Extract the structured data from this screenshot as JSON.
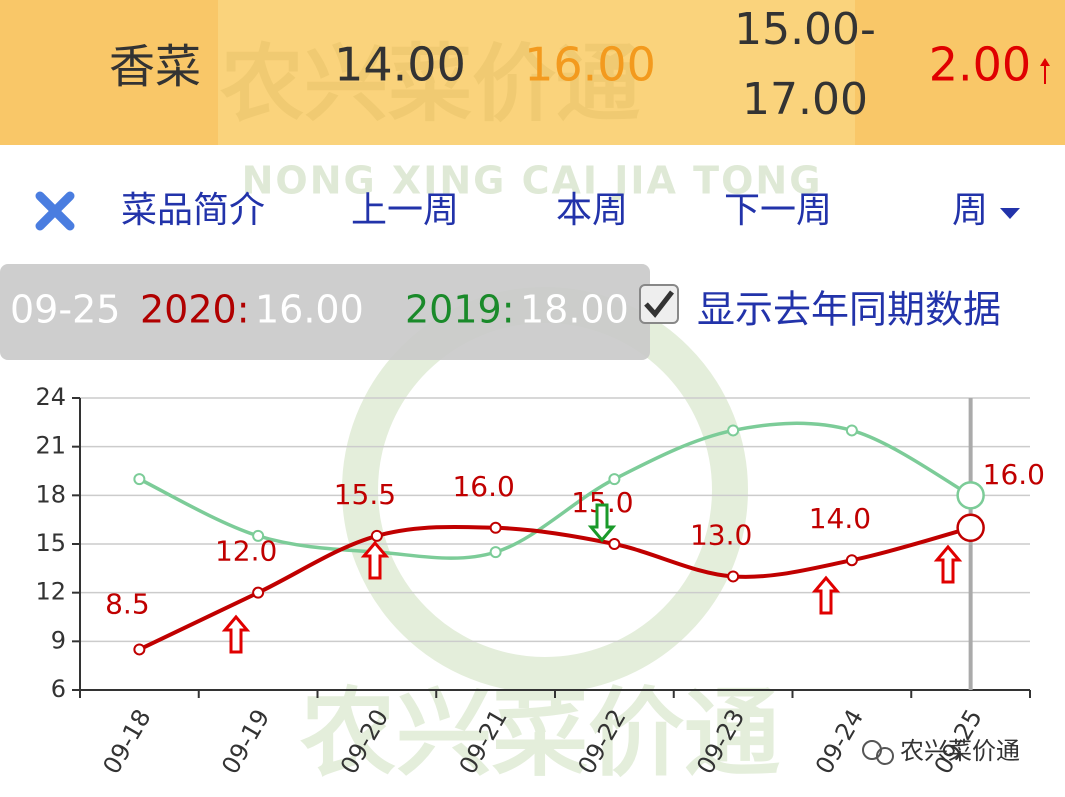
{
  "header": {
    "name": "香菜",
    "low": "14.00",
    "avg": "16.00",
    "range": [
      "15.00-",
      "17.00"
    ],
    "change": "2.00"
  },
  "watermark": {
    "text": "农兴菜价通",
    "pinyin": "NONG XING CAI JIA TONG"
  },
  "nav": {
    "items": [
      "菜品简介",
      "上一周",
      "本周",
      "下一周"
    ],
    "period": "周"
  },
  "tooltip": {
    "date": "09-25",
    "label_2020": "2020:",
    "value_2020": "16.00",
    "label_2019": "2019:",
    "value_2019": "18.00"
  },
  "checkbox": {
    "label": "显示去年同期数据"
  },
  "chart_data": {
    "type": "line",
    "categories": [
      "09-18",
      "09-19",
      "09-20",
      "09-21",
      "09-22",
      "09-23",
      "09-24",
      "09-25"
    ],
    "series": [
      {
        "name": "2019",
        "color": "#7ccc98",
        "values": [
          19,
          15.5,
          14.5,
          14.5,
          19,
          22,
          22,
          18
        ]
      },
      {
        "name": "2020",
        "color": "#c00000",
        "values": [
          8.5,
          12,
          15.5,
          16,
          15,
          13,
          14,
          16
        ],
        "value_labels": [
          "8.5",
          "12.0",
          "15.5",
          "16.0",
          "15.0",
          "13.0",
          "14.0",
          "16.0"
        ]
      }
    ],
    "ylim": [
      6,
      24
    ],
    "yticks": [
      6,
      9,
      12,
      15,
      18,
      21,
      24
    ],
    "grid": true
  }
}
